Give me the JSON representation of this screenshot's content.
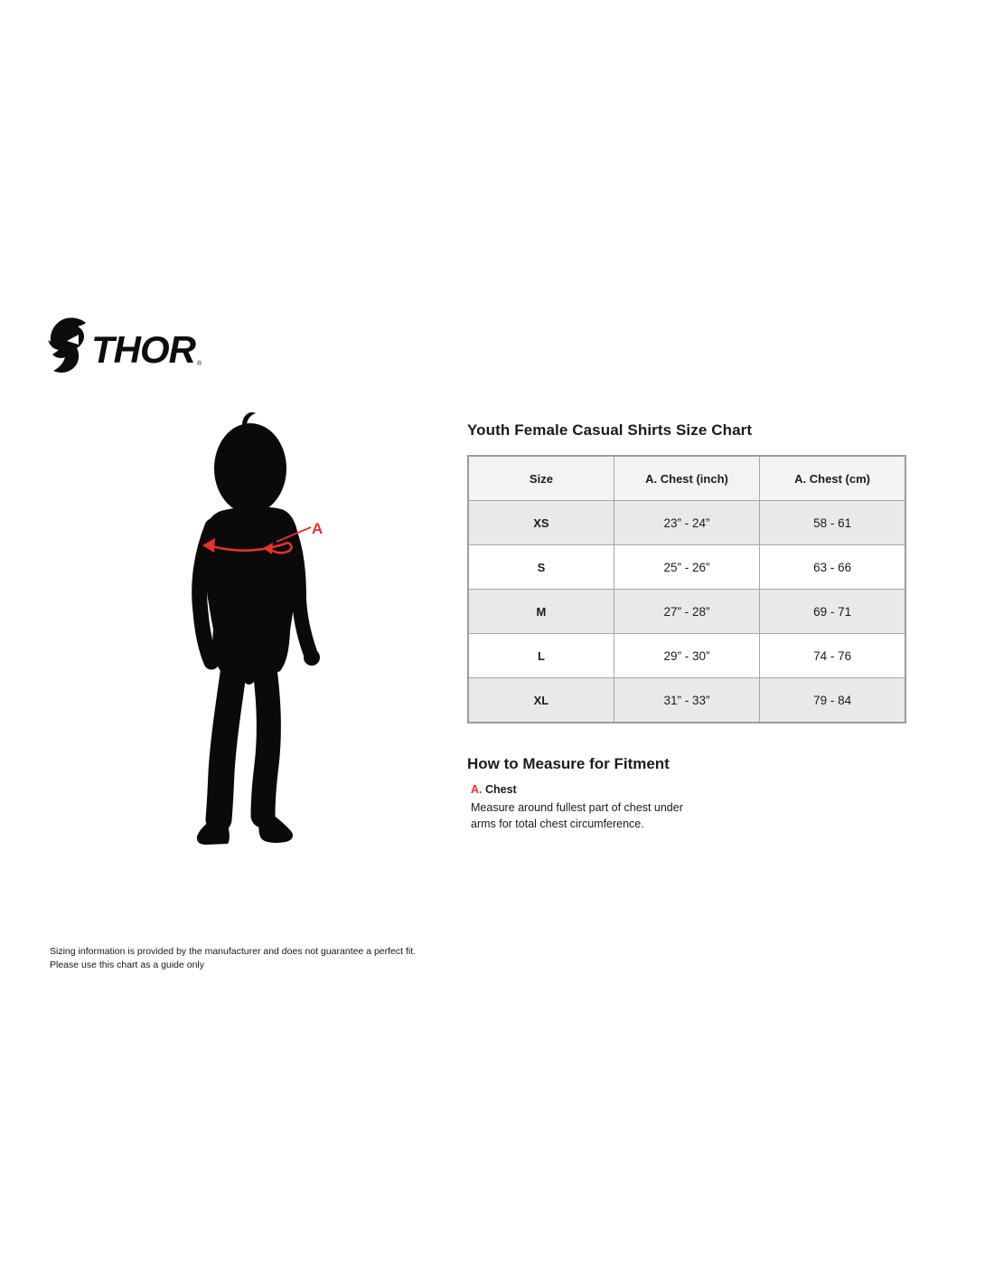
{
  "brand": {
    "logo_text": "THOR",
    "registered_mark": "®"
  },
  "figure": {
    "chest_label": "A"
  },
  "chart_data": {
    "type": "table",
    "title": "Youth Female Casual Shirts Size Chart",
    "columns": [
      "Size",
      "A. Chest (inch)",
      "A. Chest (cm)"
    ],
    "rows": [
      [
        "XS",
        "23” - 24”",
        "58 - 61"
      ],
      [
        "S",
        "25” - 26”",
        "63 - 66"
      ],
      [
        "M",
        "27” - 28”",
        "69 - 71"
      ],
      [
        "L",
        "29” - 30”",
        "74 - 76"
      ],
      [
        "XL",
        "31” - 33”",
        "79 - 84"
      ]
    ]
  },
  "how_to_measure": {
    "title": "How to Measure for Fitment",
    "items": [
      {
        "key": "A.",
        "label": "Chest",
        "description_lines": [
          "Measure around fullest part of chest under",
          "arms for total chest circumference."
        ]
      }
    ]
  },
  "footer": {
    "lines": [
      "Sizing information is provided by the manufacturer and does not guarantee a perfect fit.",
      "Please use this chart as a guide only"
    ]
  },
  "colors": {
    "accent_red": "#e5322b",
    "table_header_bg": "#f3f3f3",
    "table_row_alt_bg": "#e9e9e9",
    "table_border": "#9c9c9c"
  }
}
